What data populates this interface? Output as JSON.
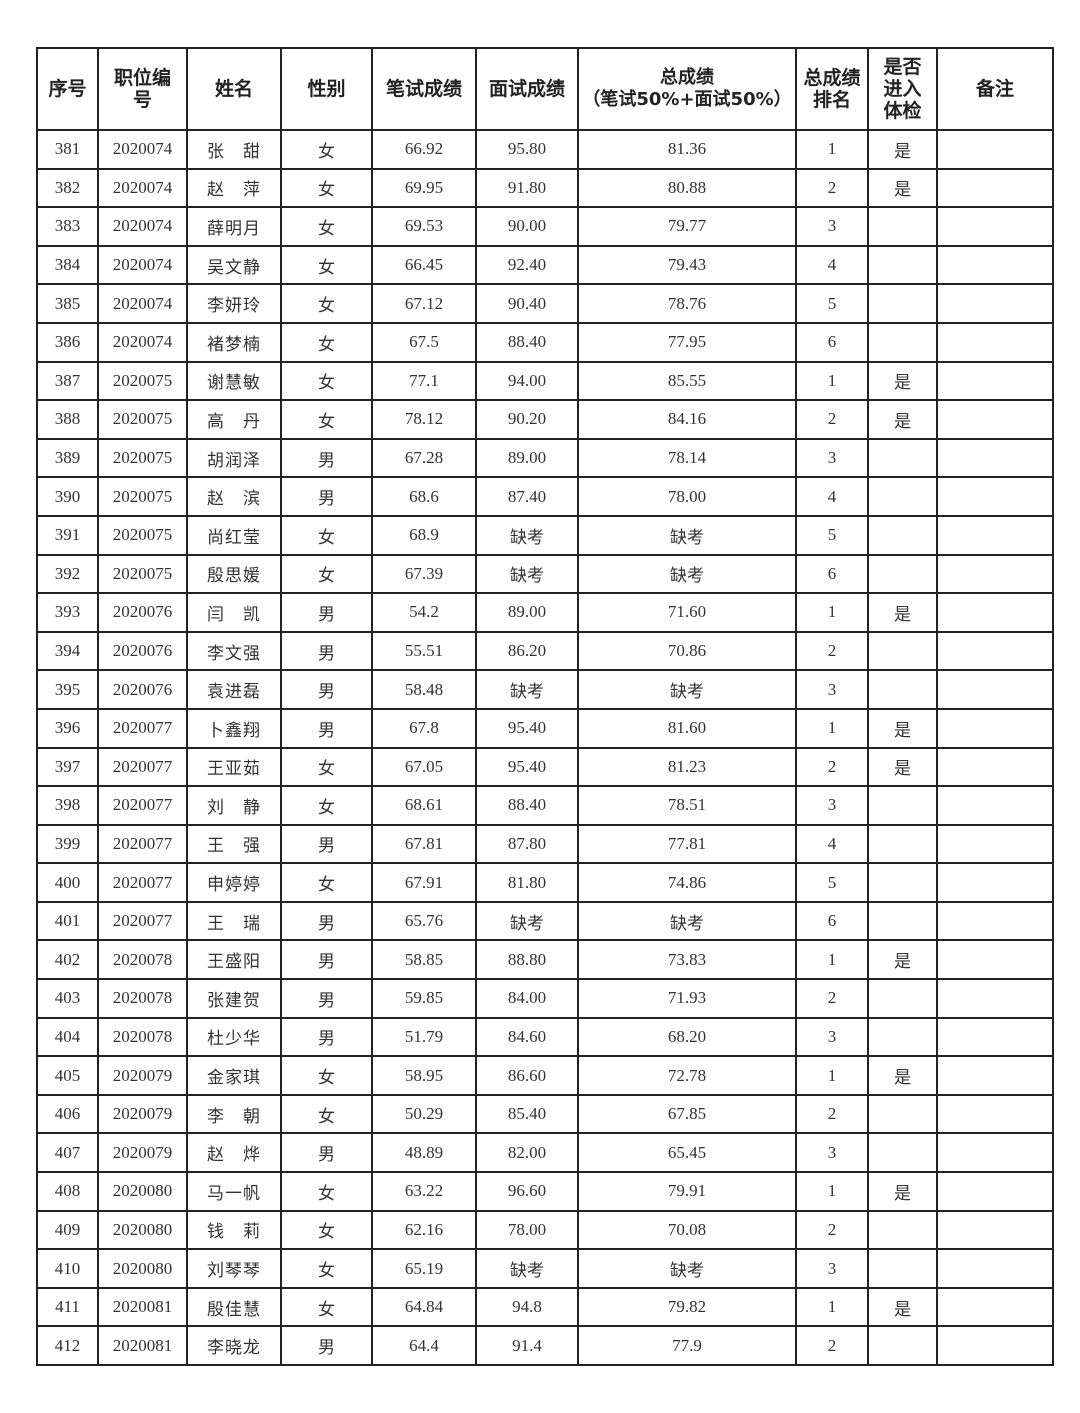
{
  "headers": [
    "序号",
    "职位编号",
    "姓名",
    "性别",
    "笔试成绩",
    "面试成绩",
    "总成绩\n（笔试50%+面试50%）",
    "总成绩排名",
    "是否进入体检",
    "备注"
  ],
  "rows": [
    [
      "381",
      "2020074",
      "张　甜",
      "女",
      "66.92",
      "95.80",
      "81.36",
      "1",
      "是",
      ""
    ],
    [
      "382",
      "2020074",
      "赵　萍",
      "女",
      "69.95",
      "91.80",
      "80.88",
      "2",
      "是",
      ""
    ],
    [
      "383",
      "2020074",
      "薛明月",
      "女",
      "69.53",
      "90.00",
      "79.77",
      "3",
      "",
      ""
    ],
    [
      "384",
      "2020074",
      "吴文静",
      "女",
      "66.45",
      "92.40",
      "79.43",
      "4",
      "",
      ""
    ],
    [
      "385",
      "2020074",
      "李妍玲",
      "女",
      "67.12",
      "90.40",
      "78.76",
      "5",
      "",
      ""
    ],
    [
      "386",
      "2020074",
      "褚梦楠",
      "女",
      "67.5",
      "88.40",
      "77.95",
      "6",
      "",
      ""
    ],
    [
      "387",
      "2020075",
      "谢慧敏",
      "女",
      "77.1",
      "94.00",
      "85.55",
      "1",
      "是",
      ""
    ],
    [
      "388",
      "2020075",
      "高　丹",
      "女",
      "78.12",
      "90.20",
      "84.16",
      "2",
      "是",
      ""
    ],
    [
      "389",
      "2020075",
      "胡润泽",
      "男",
      "67.28",
      "89.00",
      "78.14",
      "3",
      "",
      ""
    ],
    [
      "390",
      "2020075",
      "赵　滨",
      "男",
      "68.6",
      "87.40",
      "78.00",
      "4",
      "",
      ""
    ],
    [
      "391",
      "2020075",
      "尚红莹",
      "女",
      "68.9",
      "缺考",
      "缺考",
      "5",
      "",
      ""
    ],
    [
      "392",
      "2020075",
      "殷思媛",
      "女",
      "67.39",
      "缺考",
      "缺考",
      "6",
      "",
      ""
    ],
    [
      "393",
      "2020076",
      "闫　凯",
      "男",
      "54.2",
      "89.00",
      "71.60",
      "1",
      "是",
      ""
    ],
    [
      "394",
      "2020076",
      "李文强",
      "男",
      "55.51",
      "86.20",
      "70.86",
      "2",
      "",
      ""
    ],
    [
      "395",
      "2020076",
      "袁进磊",
      "男",
      "58.48",
      "缺考",
      "缺考",
      "3",
      "",
      ""
    ],
    [
      "396",
      "2020077",
      "卜鑫翔",
      "男",
      "67.8",
      "95.40",
      "81.60",
      "1",
      "是",
      ""
    ],
    [
      "397",
      "2020077",
      "王亚茹",
      "女",
      "67.05",
      "95.40",
      "81.23",
      "2",
      "是",
      ""
    ],
    [
      "398",
      "2020077",
      "刘　静",
      "女",
      "68.61",
      "88.40",
      "78.51",
      "3",
      "",
      ""
    ],
    [
      "399",
      "2020077",
      "王　强",
      "男",
      "67.81",
      "87.80",
      "77.81",
      "4",
      "",
      ""
    ],
    [
      "400",
      "2020077",
      "申婷婷",
      "女",
      "67.91",
      "81.80",
      "74.86",
      "5",
      "",
      ""
    ],
    [
      "401",
      "2020077",
      "王　瑞",
      "男",
      "65.76",
      "缺考",
      "缺考",
      "6",
      "",
      ""
    ],
    [
      "402",
      "2020078",
      "王盛阳",
      "男",
      "58.85",
      "88.80",
      "73.83",
      "1",
      "是",
      ""
    ],
    [
      "403",
      "2020078",
      "张建贺",
      "男",
      "59.85",
      "84.00",
      "71.93",
      "2",
      "",
      ""
    ],
    [
      "404",
      "2020078",
      "杜少华",
      "男",
      "51.79",
      "84.60",
      "68.20",
      "3",
      "",
      ""
    ],
    [
      "405",
      "2020079",
      "金家琪",
      "女",
      "58.95",
      "86.60",
      "72.78",
      "1",
      "是",
      ""
    ],
    [
      "406",
      "2020079",
      "李　朝",
      "女",
      "50.29",
      "85.40",
      "67.85",
      "2",
      "",
      ""
    ],
    [
      "407",
      "2020079",
      "赵　烨",
      "男",
      "48.89",
      "82.00",
      "65.45",
      "3",
      "",
      ""
    ],
    [
      "408",
      "2020080",
      "马一帆",
      "女",
      "63.22",
      "96.60",
      "79.91",
      "1",
      "是",
      ""
    ],
    [
      "409",
      "2020080",
      "钱　莉",
      "女",
      "62.16",
      "78.00",
      "70.08",
      "2",
      "",
      ""
    ],
    [
      "410",
      "2020080",
      "刘琴琴",
      "女",
      "65.19",
      "缺考",
      "缺考",
      "3",
      "",
      ""
    ],
    [
      "411",
      "2020081",
      "殷佳慧",
      "女",
      "64.84",
      "94.8",
      "79.82",
      "1",
      "是",
      ""
    ],
    [
      "412",
      "2020081",
      "李晓龙",
      "男",
      "64.4",
      "91.4",
      "77.9",
      "2",
      "",
      ""
    ]
  ]
}
